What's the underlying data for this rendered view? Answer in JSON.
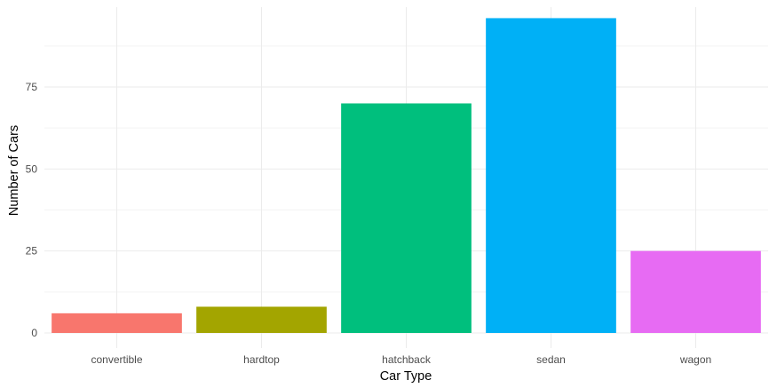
{
  "chart_data": {
    "type": "bar",
    "categories": [
      "convertible",
      "hardtop",
      "hatchback",
      "sedan",
      "wagon"
    ],
    "values": [
      6,
      8,
      70,
      96,
      25
    ],
    "colors": [
      "#F8766D",
      "#A3A500",
      "#00BF7D",
      "#00B0F6",
      "#E76BF3"
    ],
    "xlabel": "Car Type",
    "ylabel": "Number of Cars",
    "ylim": [
      0,
      100
    ],
    "yticks": [
      0,
      25,
      50,
      75
    ],
    "grid": true,
    "legend": "none",
    "theme": "minimal"
  }
}
